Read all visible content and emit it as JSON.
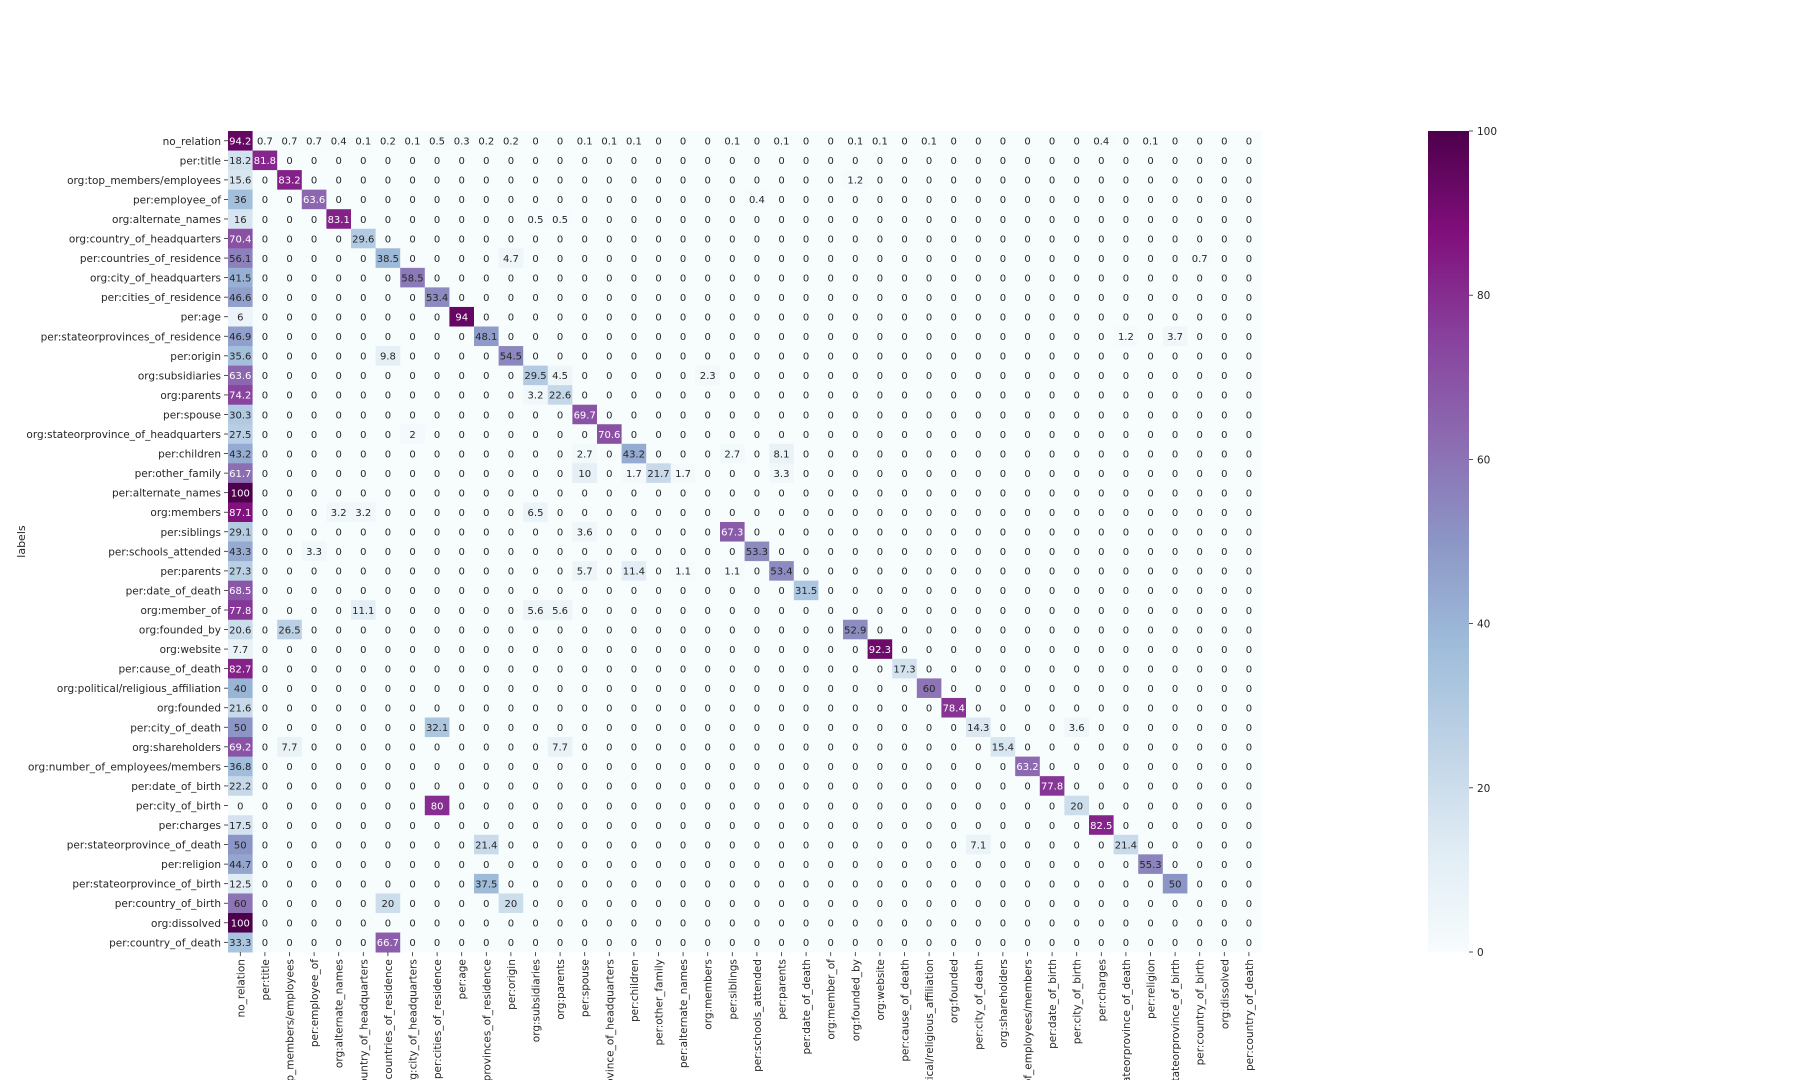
{
  "chart_data": {
    "type": "heatmap",
    "title": "",
    "ylabel": "labels",
    "xlabel": "",
    "labels": [
      "no_relation",
      "per:title",
      "org:top_members/employees",
      "per:employee_of",
      "org:alternate_names",
      "org:country_of_headquarters",
      "per:countries_of_residence",
      "org:city_of_headquarters",
      "per:cities_of_residence",
      "per:age",
      "per:stateorprovinces_of_residence",
      "per:origin",
      "org:subsidiaries",
      "org:parents",
      "per:spouse",
      "org:stateorprovince_of_headquarters",
      "per:children",
      "per:other_family",
      "per:alternate_names",
      "org:members",
      "per:siblings",
      "per:schools_attended",
      "per:parents",
      "per:date_of_death",
      "org:member_of",
      "org:founded_by",
      "org:website",
      "per:cause_of_death",
      "org:political/religious_affiliation",
      "org:founded",
      "per:city_of_death",
      "org:shareholders",
      "org:number_of_employees/members",
      "per:date_of_birth",
      "per:city_of_birth",
      "per:charges",
      "per:stateorprovince_of_death",
      "per:religion",
      "per:stateorprovince_of_birth",
      "per:country_of_birth",
      "org:dissolved",
      "per:country_of_death"
    ],
    "x_tick_labels": [
      "no_relation",
      "per:title",
      "org:top_members/employees",
      "per:employee_of",
      "org:alternate_names",
      "org:country_of_headquarters",
      "per:countries_of_residence",
      "org:city_of_headquarters",
      "per:cities_of_residence",
      "per:age",
      "per:stateorprovinces_of_residence",
      "per:origin",
      "org:subsidiaries",
      "org:parents",
      "per:spouse",
      "org:stateorprovince_of_headquarters",
      "per:children",
      "per:other_family",
      "per:alternate_names",
      "org:members",
      "per:siblings",
      "per:schools_attended",
      "per:parents",
      "per:date_of_death",
      "org:member_of",
      "org:founded_by",
      "org:website",
      "per:cause_of_death",
      "org:political/religious_affiliation",
      "org:founded",
      "per:city_of_death",
      "org:shareholders",
      "org:number_of_employees/members",
      "per:date_of_birth",
      "per:city_of_birth",
      "per:charges",
      "per:stateorprovince_of_death",
      "per:religion",
      "per:stateorprovince_of_birth",
      "per:country_of_birth",
      "org:dissolved",
      "per:country_of_death"
    ],
    "x_tick_label_display": [
      "no_relation",
      "per:title",
      "top_members/employees",
      "per:employee_of",
      "org:alternate_names",
      "country_of_headquarters",
      "per:countries_of_residence",
      "org:city_of_headquarters",
      "per:cities_of_residence",
      "per:age",
      "orprovinces_of_residence",
      "per:origin",
      "org:subsidiaries",
      "org:parents",
      "per:spouse",
      "province_of_headquarters",
      "per:children",
      "per:other_family",
      "per:alternate_names",
      "org:members",
      "per:siblings",
      "per:schools_attended",
      "per:parents",
      "per:date_of_death",
      "org:member_of",
      "org:founded_by",
      "org:website",
      "per:cause_of_death",
      "litical/religious_affiliation",
      "org:founded",
      "per:city_of_death",
      "org:shareholders",
      "r_of_employees/members",
      "per:date_of_birth",
      "per:city_of_birth",
      "per:charges",
      "stateorprovince_of_death",
      "per:religion",
      "stateorprovince_of_birth",
      "per:country_of_birth",
      "org:dissolved",
      "per:country_of_death"
    ],
    "nonzero_cells": [
      [
        0,
        0,
        94.2
      ],
      [
        0,
        1,
        0.7
      ],
      [
        0,
        2,
        0.7
      ],
      [
        0,
        3,
        0.7
      ],
      [
        0,
        4,
        0.4
      ],
      [
        0,
        5,
        0.1
      ],
      [
        0,
        6,
        0.2
      ],
      [
        0,
        7,
        0.1
      ],
      [
        0,
        8,
        0.5
      ],
      [
        0,
        9,
        0.3
      ],
      [
        0,
        10,
        0.2
      ],
      [
        0,
        11,
        0.2
      ],
      [
        0,
        14,
        0.1
      ],
      [
        0,
        15,
        0.1
      ],
      [
        0,
        16,
        0.1
      ],
      [
        0,
        20,
        0.1
      ],
      [
        0,
        22,
        0.1
      ],
      [
        0,
        25,
        0.1
      ],
      [
        0,
        26,
        0.1
      ],
      [
        0,
        28,
        0.1
      ],
      [
        0,
        35,
        0.4
      ],
      [
        0,
        37,
        0.1
      ],
      [
        1,
        0,
        18.2
      ],
      [
        1,
        1,
        81.8
      ],
      [
        2,
        0,
        15.6
      ],
      [
        2,
        2,
        83.2
      ],
      [
        2,
        25,
        1.2
      ],
      [
        3,
        0,
        36
      ],
      [
        3,
        3,
        63.6
      ],
      [
        3,
        21,
        0.4
      ],
      [
        4,
        0,
        16
      ],
      [
        4,
        4,
        83.1
      ],
      [
        4,
        12,
        0.5
      ],
      [
        4,
        13,
        0.5
      ],
      [
        5,
        0,
        70.4
      ],
      [
        5,
        5,
        29.6
      ],
      [
        6,
        0,
        56.1
      ],
      [
        6,
        6,
        38.5
      ],
      [
        6,
        11,
        4.7
      ],
      [
        6,
        39,
        0.7
      ],
      [
        7,
        0,
        41.5
      ],
      [
        7,
        7,
        58.5
      ],
      [
        8,
        0,
        46.6
      ],
      [
        8,
        8,
        53.4
      ],
      [
        9,
        0,
        6
      ],
      [
        9,
        9,
        94
      ],
      [
        10,
        0,
        46.9
      ],
      [
        10,
        10,
        48.1
      ],
      [
        10,
        36,
        1.2
      ],
      [
        10,
        38,
        3.7
      ],
      [
        11,
        0,
        35.6
      ],
      [
        11,
        6,
        9.8
      ],
      [
        11,
        11,
        54.5
      ],
      [
        12,
        0,
        63.6
      ],
      [
        12,
        12,
        29.5
      ],
      [
        12,
        13,
        4.5
      ],
      [
        12,
        19,
        2.3
      ],
      [
        13,
        0,
        74.2
      ],
      [
        13,
        12,
        3.2
      ],
      [
        13,
        13,
        22.6
      ],
      [
        14,
        0,
        30.3
      ],
      [
        14,
        14,
        69.7
      ],
      [
        15,
        0,
        27.5
      ],
      [
        15,
        7,
        2
      ],
      [
        15,
        15,
        70.6
      ],
      [
        16,
        0,
        43.2
      ],
      [
        16,
        14,
        2.7
      ],
      [
        16,
        16,
        43.2
      ],
      [
        16,
        20,
        2.7
      ],
      [
        16,
        22,
        8.1
      ],
      [
        17,
        0,
        61.7
      ],
      [
        17,
        14,
        10
      ],
      [
        17,
        16,
        1.7
      ],
      [
        17,
        17,
        21.7
      ],
      [
        17,
        18,
        1.7
      ],
      [
        17,
        22,
        3.3
      ],
      [
        18,
        0,
        100
      ],
      [
        19,
        0,
        87.1
      ],
      [
        19,
        4,
        3.2
      ],
      [
        19,
        5,
        3.2
      ],
      [
        19,
        12,
        6.5
      ],
      [
        20,
        0,
        29.1
      ],
      [
        20,
        14,
        3.6
      ],
      [
        20,
        20,
        67.3
      ],
      [
        21,
        0,
        43.3
      ],
      [
        21,
        3,
        3.3
      ],
      [
        21,
        21,
        53.3
      ],
      [
        22,
        0,
        27.3
      ],
      [
        22,
        14,
        5.7
      ],
      [
        22,
        16,
        11.4
      ],
      [
        22,
        18,
        1.1
      ],
      [
        22,
        20,
        1.1
      ],
      [
        22,
        22,
        53.4
      ],
      [
        23,
        0,
        68.5
      ],
      [
        23,
        23,
        31.5
      ],
      [
        24,
        0,
        77.8
      ],
      [
        24,
        5,
        11.1
      ],
      [
        24,
        12,
        5.6
      ],
      [
        24,
        13,
        5.6
      ],
      [
        25,
        0,
        20.6
      ],
      [
        25,
        2,
        26.5
      ],
      [
        25,
        25,
        52.9
      ],
      [
        26,
        0,
        7.7
      ],
      [
        26,
        26,
        92.3
      ],
      [
        27,
        0,
        82.7
      ],
      [
        27,
        27,
        17.3
      ],
      [
        28,
        0,
        40
      ],
      [
        28,
        28,
        60
      ],
      [
        29,
        0,
        21.6
      ],
      [
        29,
        29,
        78.4
      ],
      [
        30,
        0,
        50
      ],
      [
        30,
        8,
        32.1
      ],
      [
        30,
        30,
        14.3
      ],
      [
        30,
        34,
        3.6
      ],
      [
        31,
        0,
        69.2
      ],
      [
        31,
        2,
        7.7
      ],
      [
        31,
        13,
        7.7
      ],
      [
        31,
        31,
        15.4
      ],
      [
        32,
        0,
        36.8
      ],
      [
        32,
        32,
        63.2
      ],
      [
        33,
        0,
        22.2
      ],
      [
        33,
        33,
        77.8
      ],
      [
        34,
        0,
        0
      ],
      [
        34,
        8,
        80
      ],
      [
        34,
        34,
        20
      ],
      [
        35,
        0,
        17.5
      ],
      [
        35,
        35,
        82.5
      ],
      [
        36,
        0,
        50
      ],
      [
        36,
        10,
        21.4
      ],
      [
        36,
        30,
        7.1
      ],
      [
        36,
        36,
        21.4
      ],
      [
        37,
        0,
        44.7
      ],
      [
        37,
        37,
        55.3
      ],
      [
        38,
        0,
        12.5
      ],
      [
        38,
        10,
        37.5
      ],
      [
        38,
        38,
        50
      ],
      [
        39,
        0,
        60
      ],
      [
        39,
        6,
        20
      ],
      [
        39,
        11,
        20
      ],
      [
        40,
        0,
        100
      ],
      [
        41,
        0,
        33.3
      ],
      [
        41,
        6,
        66.7
      ]
    ],
    "colorbar": {
      "min": 0,
      "max": 100,
      "ticks": [
        0,
        20,
        40,
        60,
        80,
        100
      ],
      "colormap": "BuPu"
    },
    "grid": false,
    "legend": "none"
  }
}
